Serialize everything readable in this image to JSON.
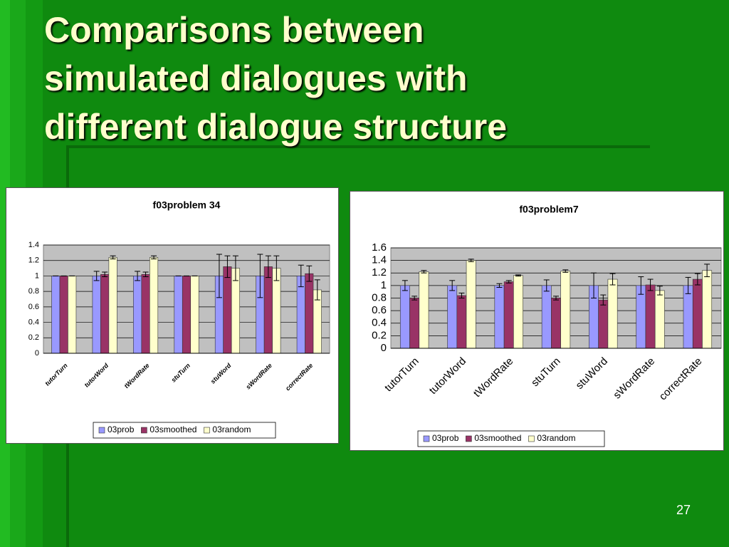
{
  "title_lines": [
    "Comparisons between",
    "simulated dialogues with",
    "different dialogue structure"
  ],
  "page_number": "27",
  "chart_data": [
    {
      "type": "bar",
      "title": "f03problem 34",
      "categories": [
        "tutorTurn",
        "tutorWord",
        "tWordRate",
        "stuTurn",
        "stuWord",
        "sWordRate",
        "correctRate"
      ],
      "series": [
        {
          "name": "03prob",
          "color": "#9999ff",
          "values": [
            1,
            1,
            1,
            1,
            1,
            1,
            1
          ],
          "errors": [
            0,
            0.06,
            0.06,
            0,
            0.28,
            0.28,
            0.14
          ]
        },
        {
          "name": "03smoothed",
          "color": "#993366",
          "values": [
            1,
            1.02,
            1.02,
            1,
            1.12,
            1.12,
            1.03
          ],
          "errors": [
            0,
            0.03,
            0.03,
            0,
            0.14,
            0.14,
            0.1
          ]
        },
        {
          "name": "03random",
          "color": "#ffffcc",
          "values": [
            1,
            1.24,
            1.24,
            1,
            1.1,
            1.1,
            0.82
          ],
          "errors": [
            0,
            0.02,
            0.02,
            0,
            0.16,
            0.16,
            0.13
          ]
        }
      ],
      "ylim": [
        0,
        1.4
      ],
      "yticks": [
        0,
        0.2,
        0.4,
        0.6,
        0.8,
        1,
        1.2,
        1.4
      ],
      "grid": true,
      "legend": "bottom"
    },
    {
      "type": "bar",
      "title": "f03problem7",
      "categories": [
        "tutorTurn",
        "tutorWord",
        "tWordRate",
        "stuTurn",
        "stuWord",
        "sWordRate",
        "correctRate"
      ],
      "series": [
        {
          "name": "03prob",
          "color": "#9999ff",
          "values": [
            1,
            1,
            1,
            1,
            1,
            1,
            1
          ],
          "errors": [
            0.08,
            0.08,
            0.03,
            0.09,
            0.2,
            0.14,
            0.13
          ]
        },
        {
          "name": "03smoothed",
          "color": "#993366",
          "values": [
            0.8,
            0.84,
            1.06,
            0.8,
            0.77,
            1.01,
            1.1
          ],
          "errors": [
            0.03,
            0.04,
            0.02,
            0.03,
            0.08,
            0.09,
            0.09
          ]
        },
        {
          "name": "03random",
          "color": "#ffffcc",
          "values": [
            1.22,
            1.4,
            1.16,
            1.23,
            1.1,
            0.92,
            1.24
          ],
          "errors": [
            0.02,
            0.02,
            0.01,
            0.02,
            0.09,
            0.07,
            0.1
          ]
        }
      ],
      "ylim": [
        0,
        1.6
      ],
      "yticks": [
        0,
        0.2,
        0.4,
        0.6,
        0.8,
        1,
        1.2,
        1.4,
        1.6
      ],
      "grid": true,
      "legend": "bottom"
    }
  ]
}
